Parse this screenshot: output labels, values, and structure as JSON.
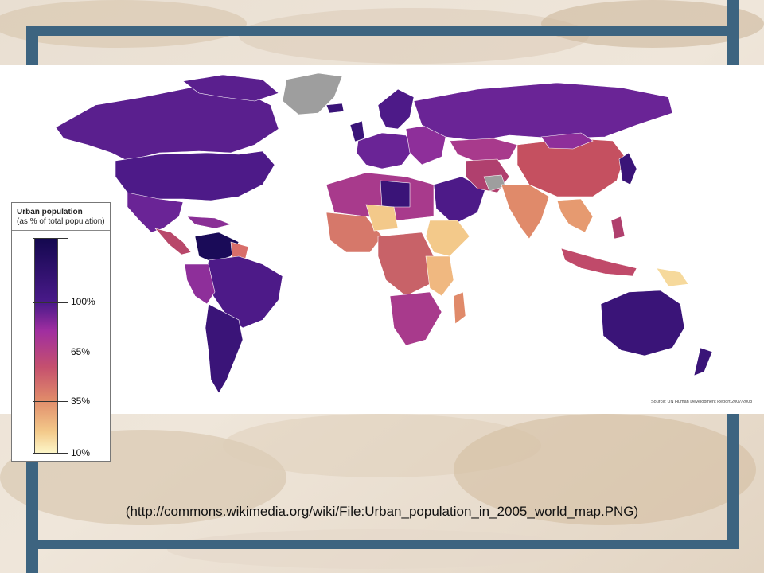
{
  "legend": {
    "title": "Urban population",
    "subtitle": "(as % of total population)",
    "ticks": [
      "100%",
      "65%",
      "35%",
      "10%"
    ]
  },
  "source": "Source: UN Human Development Report 2007/2008",
  "caption": "(http://commons.wikimedia.org/wiki/File:Urban_population_in_2005_world_map.PNG)",
  "colors": {
    "frame": "#3d6480",
    "scale_high": "#14084f",
    "scale_mid_high": "#a02ea0",
    "scale_mid_low": "#d8786a",
    "scale_low": "#fdf6c8",
    "no_data": "#9e9e9e"
  }
}
